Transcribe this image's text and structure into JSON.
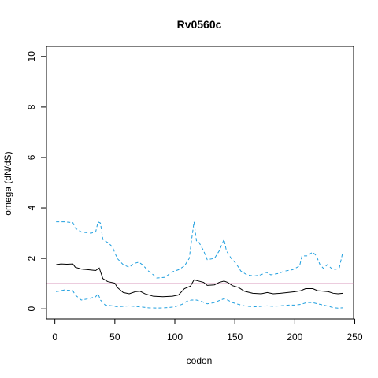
{
  "chart_data": {
    "type": "line",
    "title": "Rv0560c",
    "xlabel": "codon",
    "ylabel": "omega (dN/dS)",
    "xlim": [
      -7,
      249
    ],
    "ylim": [
      -0.4,
      10.4
    ],
    "x_ticks": [
      "0",
      "50",
      "100",
      "150",
      "200",
      "250"
    ],
    "y_ticks": [
      "0",
      "2",
      "4",
      "6",
      "8",
      "10"
    ],
    "x_tick_values": [
      0,
      50,
      100,
      150,
      200,
      250
    ],
    "y_tick_values": [
      0,
      2,
      4,
      6,
      8,
      10
    ],
    "grid": false,
    "reference_line": {
      "y": 1,
      "color": "#cc79a7"
    },
    "series": [
      {
        "role": "upper",
        "color": "#1f9fdf",
        "dashed": true,
        "points": [
          [
            1,
            3.45
          ],
          [
            8,
            3.45
          ],
          [
            15,
            3.42
          ],
          [
            17,
            3.2
          ],
          [
            22,
            3.05
          ],
          [
            30,
            3.0
          ],
          [
            34,
            3.05
          ],
          [
            36,
            3.45
          ],
          [
            38,
            3.4
          ],
          [
            40,
            2.75
          ],
          [
            45,
            2.6
          ],
          [
            48,
            2.45
          ],
          [
            52,
            2.0
          ],
          [
            57,
            1.75
          ],
          [
            62,
            1.65
          ],
          [
            66,
            1.8
          ],
          [
            70,
            1.85
          ],
          [
            73,
            1.75
          ],
          [
            78,
            1.5
          ],
          [
            82,
            1.35
          ],
          [
            85,
            1.22
          ],
          [
            92,
            1.25
          ],
          [
            97,
            1.45
          ],
          [
            103,
            1.55
          ],
          [
            108,
            1.7
          ],
          [
            112,
            2.0
          ],
          [
            114,
            2.75
          ],
          [
            116,
            3.45
          ],
          [
            118,
            2.7
          ],
          [
            120,
            2.65
          ],
          [
            124,
            2.3
          ],
          [
            127,
            1.95
          ],
          [
            133,
            2.0
          ],
          [
            137,
            2.3
          ],
          [
            141,
            2.75
          ],
          [
            143,
            2.3
          ],
          [
            147,
            2.0
          ],
          [
            151,
            1.8
          ],
          [
            155,
            1.5
          ],
          [
            160,
            1.35
          ],
          [
            166,
            1.3
          ],
          [
            172,
            1.35
          ],
          [
            176,
            1.45
          ],
          [
            180,
            1.35
          ],
          [
            186,
            1.4
          ],
          [
            192,
            1.5
          ],
          [
            198,
            1.55
          ],
          [
            204,
            1.7
          ],
          [
            206,
            2.1
          ],
          [
            210,
            2.1
          ],
          [
            215,
            2.25
          ],
          [
            218,
            2.1
          ],
          [
            221,
            1.75
          ],
          [
            224,
            1.6
          ],
          [
            227,
            1.75
          ],
          [
            232,
            1.55
          ],
          [
            237,
            1.6
          ],
          [
            240,
            2.25
          ]
        ]
      },
      {
        "role": "estimate",
        "color": "#000000",
        "dashed": false,
        "points": [
          [
            1,
            1.75
          ],
          [
            5,
            1.78
          ],
          [
            10,
            1.77
          ],
          [
            15,
            1.78
          ],
          [
            17,
            1.65
          ],
          [
            22,
            1.58
          ],
          [
            28,
            1.55
          ],
          [
            34,
            1.52
          ],
          [
            37,
            1.62
          ],
          [
            40,
            1.2
          ],
          [
            44,
            1.08
          ],
          [
            50,
            1.02
          ],
          [
            52,
            0.85
          ],
          [
            57,
            0.65
          ],
          [
            62,
            0.6
          ],
          [
            67,
            0.68
          ],
          [
            71,
            0.7
          ],
          [
            75,
            0.6
          ],
          [
            82,
            0.5
          ],
          [
            90,
            0.48
          ],
          [
            98,
            0.5
          ],
          [
            103,
            0.55
          ],
          [
            108,
            0.8
          ],
          [
            113,
            0.9
          ],
          [
            116,
            1.15
          ],
          [
            120,
            1.1
          ],
          [
            124,
            1.05
          ],
          [
            127,
            0.93
          ],
          [
            133,
            0.95
          ],
          [
            137,
            1.05
          ],
          [
            141,
            1.1
          ],
          [
            144,
            1.05
          ],
          [
            148,
            0.92
          ],
          [
            153,
            0.85
          ],
          [
            158,
            0.7
          ],
          [
            165,
            0.62
          ],
          [
            172,
            0.6
          ],
          [
            177,
            0.65
          ],
          [
            182,
            0.6
          ],
          [
            188,
            0.62
          ],
          [
            194,
            0.65
          ],
          [
            200,
            0.68
          ],
          [
            205,
            0.72
          ],
          [
            209,
            0.8
          ],
          [
            215,
            0.8
          ],
          [
            219,
            0.72
          ],
          [
            224,
            0.7
          ],
          [
            228,
            0.68
          ],
          [
            232,
            0.62
          ],
          [
            236,
            0.6
          ],
          [
            240,
            0.62
          ]
        ]
      },
      {
        "role": "lower",
        "color": "#1f9fdf",
        "dashed": true,
        "points": [
          [
            1,
            0.68
          ],
          [
            8,
            0.75
          ],
          [
            15,
            0.72
          ],
          [
            17,
            0.55
          ],
          [
            22,
            0.35
          ],
          [
            28,
            0.4
          ],
          [
            34,
            0.48
          ],
          [
            36,
            0.6
          ],
          [
            38,
            0.35
          ],
          [
            42,
            0.15
          ],
          [
            48,
            0.12
          ],
          [
            52,
            0.08
          ],
          [
            57,
            0.1
          ],
          [
            62,
            0.12
          ],
          [
            66,
            0.1
          ],
          [
            71,
            0.08
          ],
          [
            78,
            0.04
          ],
          [
            86,
            0.03
          ],
          [
            94,
            0.05
          ],
          [
            100,
            0.08
          ],
          [
            106,
            0.18
          ],
          [
            110,
            0.3
          ],
          [
            114,
            0.35
          ],
          [
            118,
            0.35
          ],
          [
            122,
            0.3
          ],
          [
            127,
            0.2
          ],
          [
            133,
            0.25
          ],
          [
            138,
            0.35
          ],
          [
            141,
            0.4
          ],
          [
            144,
            0.35
          ],
          [
            148,
            0.25
          ],
          [
            153,
            0.18
          ],
          [
            158,
            0.12
          ],
          [
            165,
            0.08
          ],
          [
            172,
            0.1
          ],
          [
            177,
            0.12
          ],
          [
            182,
            0.1
          ],
          [
            188,
            0.12
          ],
          [
            195,
            0.15
          ],
          [
            200,
            0.15
          ],
          [
            205,
            0.18
          ],
          [
            210,
            0.25
          ],
          [
            215,
            0.25
          ],
          [
            219,
            0.2
          ],
          [
            224,
            0.15
          ],
          [
            228,
            0.1
          ],
          [
            232,
            0.05
          ],
          [
            236,
            0.03
          ],
          [
            240,
            0.04
          ]
        ]
      }
    ]
  }
}
